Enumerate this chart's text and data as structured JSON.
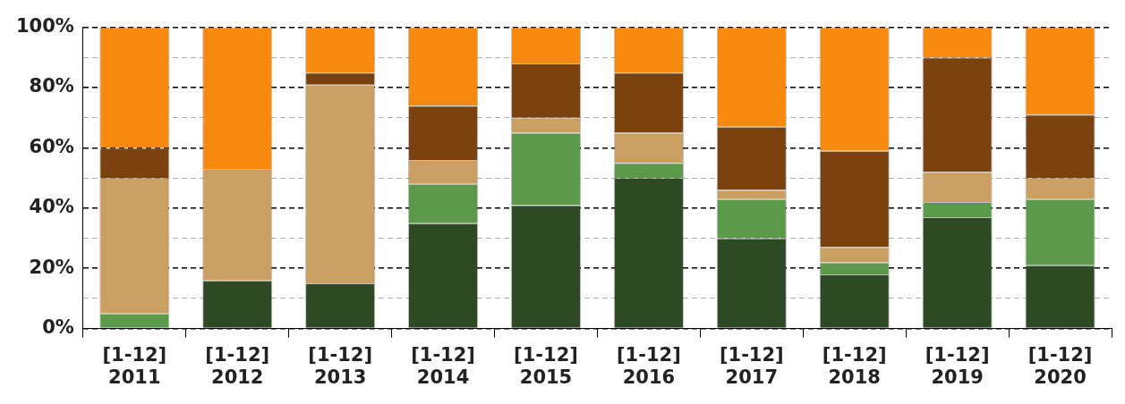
{
  "chart_data": {
    "type": "bar",
    "stacked": true,
    "categories": [
      "[1-12]\n2011",
      "[1-12]\n2012",
      "[1-12]\n2013",
      "[1-12]\n2014",
      "[1-12]\n2015",
      "[1-12]\n2016",
      "[1-12]\n2017",
      "[1-12]\n2018",
      "[1-12]\n2019",
      "[1-12]\n2020"
    ],
    "series": [
      {
        "color": "#2e4a24",
        "values": [
          0,
          16,
          15,
          35,
          41,
          50,
          30,
          18,
          37,
          21
        ]
      },
      {
        "color": "#5a9a4a",
        "values": [
          5,
          0,
          0,
          13,
          24,
          5,
          13,
          4,
          5,
          22
        ]
      },
      {
        "color": "#c9a062",
        "values": [
          45,
          37,
          66,
          8,
          5,
          10,
          3,
          5,
          10,
          7
        ]
      },
      {
        "color": "#7b4210",
        "values": [
          10,
          0,
          4,
          18,
          18,
          20,
          21,
          32,
          38,
          21
        ]
      },
      {
        "color": "#f7890f",
        "values": [
          40,
          47,
          15,
          26,
          12,
          15,
          33,
          41,
          10,
          29
        ]
      }
    ],
    "ylim": [
      0,
      100
    ],
    "yticks": [
      {
        "value": 0,
        "label": "0%"
      },
      {
        "value": 10,
        "label": null
      },
      {
        "value": 20,
        "label": "20%"
      },
      {
        "value": 30,
        "label": null
      },
      {
        "value": 40,
        "label": "40%"
      },
      {
        "value": 50,
        "label": null
      },
      {
        "value": 60,
        "label": "60%"
      },
      {
        "value": 70,
        "label": null
      },
      {
        "value": 80,
        "label": "80%"
      },
      {
        "value": 90,
        "label": null
      },
      {
        "value": 100,
        "label": "100%"
      }
    ],
    "grid": "y",
    "legend": false
  }
}
